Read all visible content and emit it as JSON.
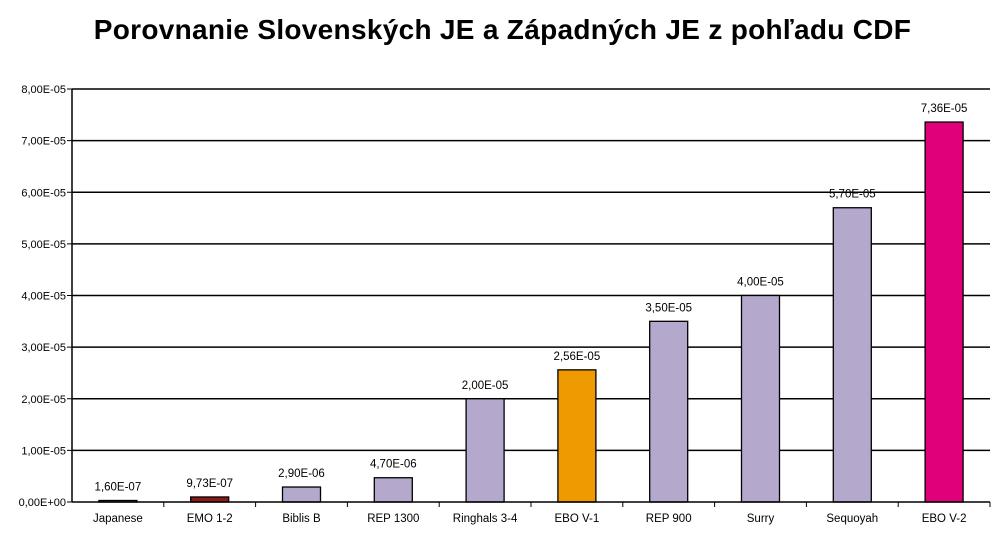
{
  "chart_data": {
    "type": "bar",
    "title": "Porovnanie Slovenských JE a Západných JE z pohľadu CDF",
    "categories": [
      "Japanese",
      "EMO 1-2",
      "Biblis B",
      "REP 1300",
      "Ringhals 3-4",
      "EBO V-1",
      "REP 900",
      "Surry",
      "Sequoyah",
      "EBO V-2"
    ],
    "values": [
      1.6e-07,
      9.73e-07,
      2.9e-06,
      4.7e-06,
      2e-05,
      2.56e-05,
      3.5e-05,
      4e-05,
      5.7e-05,
      7.36e-05
    ],
    "data_labels": [
      "1,60E-07",
      "9,73E-07",
      "2,90E-06",
      "4,70E-06",
      "2,00E-05",
      "2,56E-05",
      "3,50E-05",
      "4,00E-05",
      "5,70E-05",
      "7,36E-05"
    ],
    "colors": [
      "#b4a8cc",
      "#8b1a1a",
      "#b4a8cc",
      "#b4a8cc",
      "#b4a8cc",
      "#ee9a00",
      "#b4a8cc",
      "#b4a8cc",
      "#b4a8cc",
      "#e0007a"
    ],
    "ylim": [
      0,
      8e-05
    ],
    "yticks": [
      0,
      1e-05,
      2e-05,
      3e-05,
      4e-05,
      5e-05,
      6e-05,
      7e-05,
      8e-05
    ],
    "ytick_labels": [
      "0,00E+00",
      "1,00E-05",
      "2,00E-05",
      "3,00E-05",
      "4,00E-05",
      "5,00E-05",
      "6,00E-05",
      "7,00E-05",
      "8,00E-05"
    ],
    "grid": true,
    "xlabel": "",
    "ylabel": ""
  }
}
